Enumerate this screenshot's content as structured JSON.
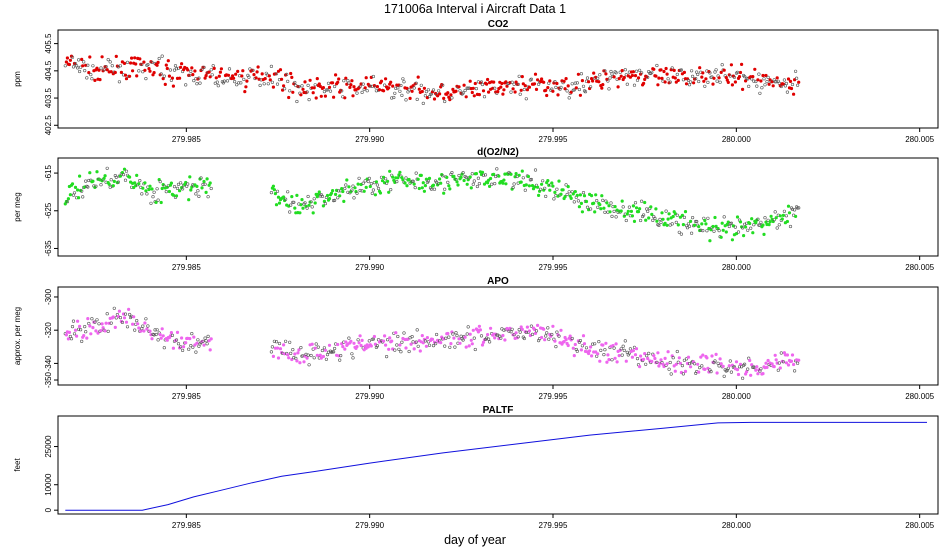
{
  "figure": {
    "title": "171006a   Interval i Aircraft Data 1",
    "xlabel": "day of year"
  },
  "chart_data": [
    {
      "type": "scatter",
      "title": "CO2",
      "ylabel": "ppm",
      "color": "#e00000",
      "xlim": [
        279.9815,
        280.0055
      ],
      "ylim": [
        402.4,
        406.0
      ],
      "xticks": [
        279.985,
        279.99,
        279.995,
        280.0,
        280.005
      ],
      "xtick_labels": [
        "279.985",
        "279.990",
        "279.995",
        "280.000",
        "280.005"
      ],
      "yticks": [
        402.5,
        403.5,
        404.5,
        405.5
      ],
      "ytick_labels": [
        "402.5",
        "403.5",
        "404.5",
        "405.5"
      ],
      "x": [
        279.9817,
        279.9825,
        279.9833,
        279.9841,
        279.9849,
        279.9857,
        279.9865,
        279.9873,
        279.9881,
        279.9889,
        279.9897,
        279.9905,
        279.9913,
        279.9921,
        279.9929,
        279.9937,
        279.9945,
        279.9953,
        279.9961,
        279.9969,
        279.9977,
        279.9985,
        279.9993,
        280.0001,
        280.0009,
        280.0017
      ],
      "values": [
        404.8,
        404.5,
        404.6,
        404.6,
        404.4,
        404.3,
        404.2,
        404.4,
        403.8,
        403.9,
        403.9,
        403.9,
        403.8,
        403.7,
        403.8,
        403.9,
        404.0,
        403.9,
        404.1,
        404.4,
        404.3,
        404.2,
        404.4,
        404.2,
        404.1,
        404.0
      ]
    },
    {
      "type": "scatter",
      "title": "d(O2/N2)",
      "ylabel": "per meg",
      "color": "#22dd22",
      "xlim": [
        279.9815,
        280.0055
      ],
      "ylim": [
        -637,
        -611
      ],
      "xticks": [
        279.985,
        279.99,
        279.995,
        280.0,
        280.005
      ],
      "xtick_labels": [
        "279.985",
        "279.990",
        "279.995",
        "280.000",
        "280.005"
      ],
      "yticks": [
        -615,
        -625,
        -635
      ],
      "ytick_labels": [
        "-615",
        "-625",
        "-635"
      ],
      "x": [
        279.9817,
        279.9825,
        279.9833,
        279.9841,
        279.9849,
        279.9857,
        279.9865,
        279.9873,
        279.9881,
        279.9889,
        279.9897,
        279.9905,
        279.9913,
        279.9921,
        279.9929,
        279.9937,
        279.9945,
        279.9953,
        279.9961,
        279.9969,
        279.9977,
        279.9985,
        279.9993,
        280.0001,
        280.0009,
        280.0017
      ],
      "values": [
        -621,
        -617,
        -616,
        -620,
        -619,
        -619,
        null,
        -620,
        -624,
        -621,
        -619,
        -617,
        -617,
        -617,
        -617,
        -616,
        -618,
        -620,
        -623,
        -625,
        -626,
        -628,
        -630,
        -630,
        -628,
        -625
      ]
    },
    {
      "type": "scatter",
      "title": "APO",
      "ylabel": "approx. per meg",
      "color": "#ee66ee",
      "xlim": [
        279.9815,
        280.0055
      ],
      "ylim": [
        -353,
        -294
      ],
      "xticks": [
        279.985,
        279.99,
        279.995,
        280.0,
        280.005
      ],
      "xtick_labels": [
        "279.985",
        "279.990",
        "279.995",
        "280.000",
        "280.005"
      ],
      "yticks": [
        -300,
        -320,
        -340,
        -350
      ],
      "ytick_labels": [
        "-300",
        "-320",
        "-340",
        "-350"
      ],
      "x": [
        279.9817,
        279.9825,
        279.9833,
        279.9841,
        279.9849,
        279.9857,
        279.9865,
        279.9873,
        279.9881,
        279.9889,
        279.9897,
        279.9905,
        279.9913,
        279.9921,
        279.9929,
        279.9937,
        279.9945,
        279.9953,
        279.9961,
        279.9969,
        279.9977,
        279.9985,
        279.9993,
        280.0001,
        280.0009,
        280.0017
      ],
      "values": [
        -322,
        -318,
        -312,
        -322,
        -328,
        -327,
        null,
        -330,
        -335,
        -332,
        -329,
        -328,
        -326,
        -325,
        -324,
        -322,
        -320,
        -326,
        -331,
        -335,
        -338,
        -340,
        -341,
        -343,
        -340,
        -337
      ]
    },
    {
      "type": "line",
      "title": "PALTF",
      "ylabel": "feet",
      "color": "#1010dd",
      "xlim": [
        279.9815,
        280.0055
      ],
      "ylim": [
        -1500,
        37000
      ],
      "xticks": [
        279.985,
        279.99,
        279.995,
        280.0,
        280.005
      ],
      "xtick_labels": [
        "279.985",
        "279.990",
        "279.995",
        "280.000",
        "280.005"
      ],
      "yticks": [
        0,
        10000,
        25000
      ],
      "ytick_labels": [
        "0",
        "10000",
        "25000"
      ],
      "x": [
        279.9817,
        279.983,
        279.9838,
        279.9845,
        279.9852,
        279.986,
        279.9868,
        279.9876,
        279.9885,
        279.99,
        279.992,
        279.994,
        279.996,
        279.998,
        279.9995,
        280.0004,
        280.003,
        280.0052
      ],
      "values": [
        0,
        0,
        0,
        2200,
        5200,
        8000,
        10800,
        13300,
        15200,
        18500,
        22500,
        26000,
        29500,
        32200,
        34300,
        34500,
        34500,
        34500
      ]
    }
  ]
}
